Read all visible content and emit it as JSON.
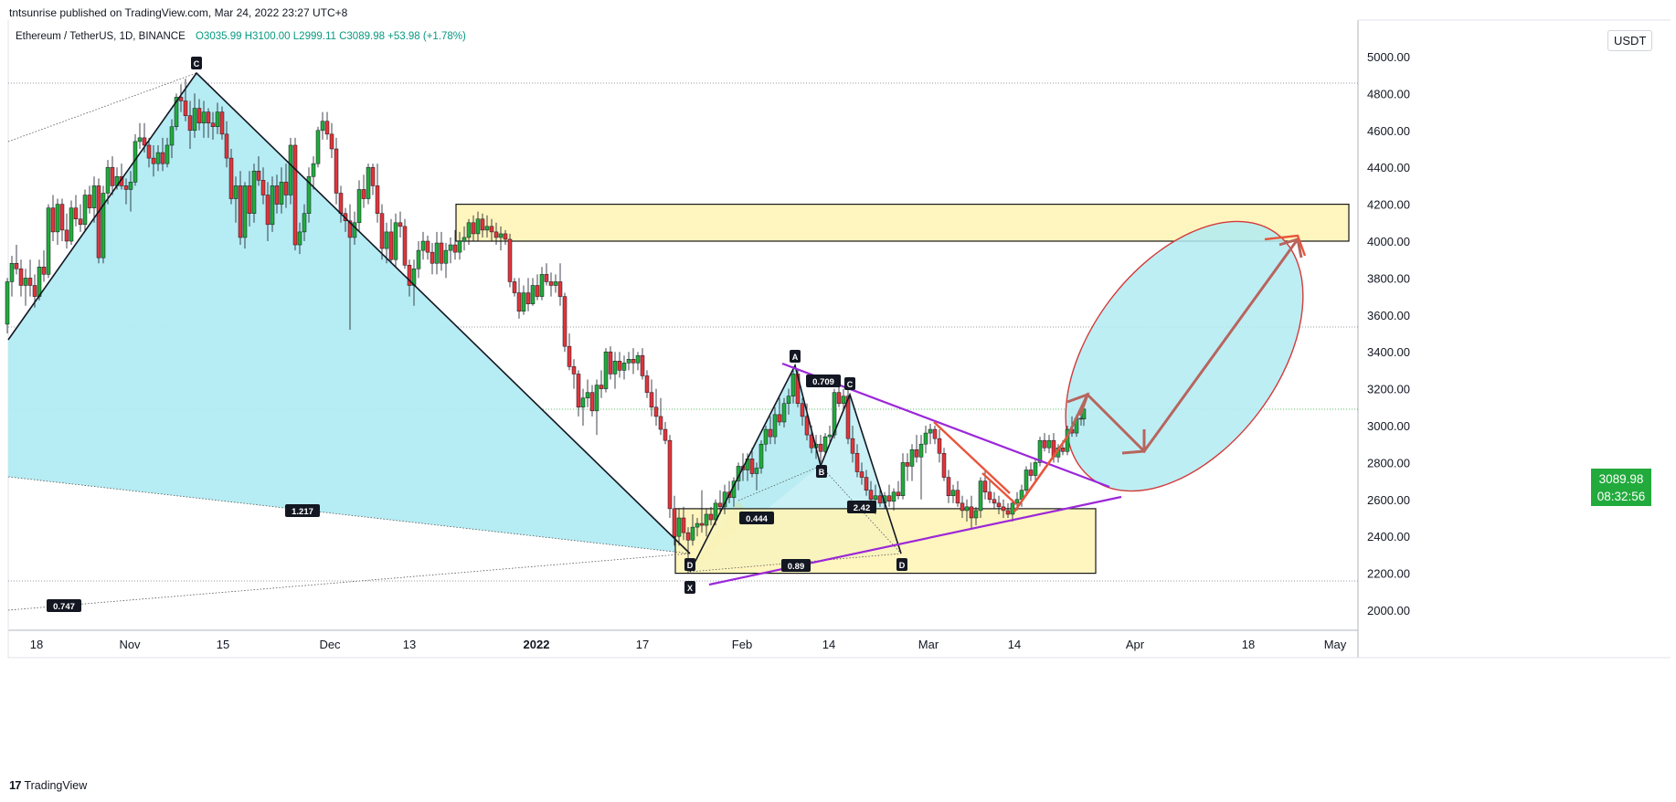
{
  "header": {
    "publisher": "tntsunrise published on TradingView.com, Mar 24, 2022 23:27 UTC+8",
    "symbol": "Ethereum / TetherUS, 1D, BINANCE",
    "open": "O3035.99",
    "high": "H3100.00",
    "low": "L2999.11",
    "close": "C3089.98",
    "change": "+53.98 (+1.78%)"
  },
  "currency": "USDT",
  "last_price": {
    "price": "3089.98",
    "countdown": "08:32:56"
  },
  "footer": {
    "logo": "17",
    "brand": "TradingView"
  },
  "chart_data": {
    "type": "candlestick",
    "y_axis": {
      "ticks": [
        2000,
        2200,
        2400,
        2600,
        2800,
        3000,
        3200,
        3400,
        3600,
        3800,
        4000,
        4200,
        4400,
        4600,
        4800,
        5000
      ],
      "labels": [
        "2000.00",
        "2200.00",
        "2400.00",
        "2600.00",
        "2800.00",
        "3000.00",
        "3200.00",
        "3400.00",
        "3600.00",
        "3800.00",
        "4000.00",
        "4200.00",
        "4400.00",
        "4600.00",
        "4800.00",
        "5000.00"
      ],
      "range": [
        1900,
        5080
      ]
    },
    "x_axis": {
      "labels": [
        "18",
        "Nov",
        "15",
        "Dec",
        "13",
        "2022",
        "17",
        "Feb",
        "14",
        "Mar",
        "14",
        "Apr",
        "18",
        "May"
      ],
      "bold": [
        "2022"
      ]
    },
    "harmonic_labels": [
      "C",
      "D",
      "X",
      "A",
      "B",
      "C",
      "D"
    ],
    "ratios": [
      "1.217",
      "0.747",
      "0.444",
      "0.709",
      "2.42",
      "0.89"
    ],
    "zones": [
      {
        "name": "resistance",
        "y_range": [
          4000,
          4200
        ],
        "color": "#fff5b8"
      },
      {
        "name": "support",
        "y_range": [
          2200,
          2550
        ],
        "color": "#fff5b8"
      }
    ],
    "colors": {
      "up": "#22ab3c",
      "down": "#e0353a",
      "pattern_fill": "#b2ebf2",
      "pattern_fill_green": "#c8e6c9",
      "trendline": "#9c27d9",
      "arrow": "#b7655e",
      "ellipse": "#d33a3a"
    }
  }
}
